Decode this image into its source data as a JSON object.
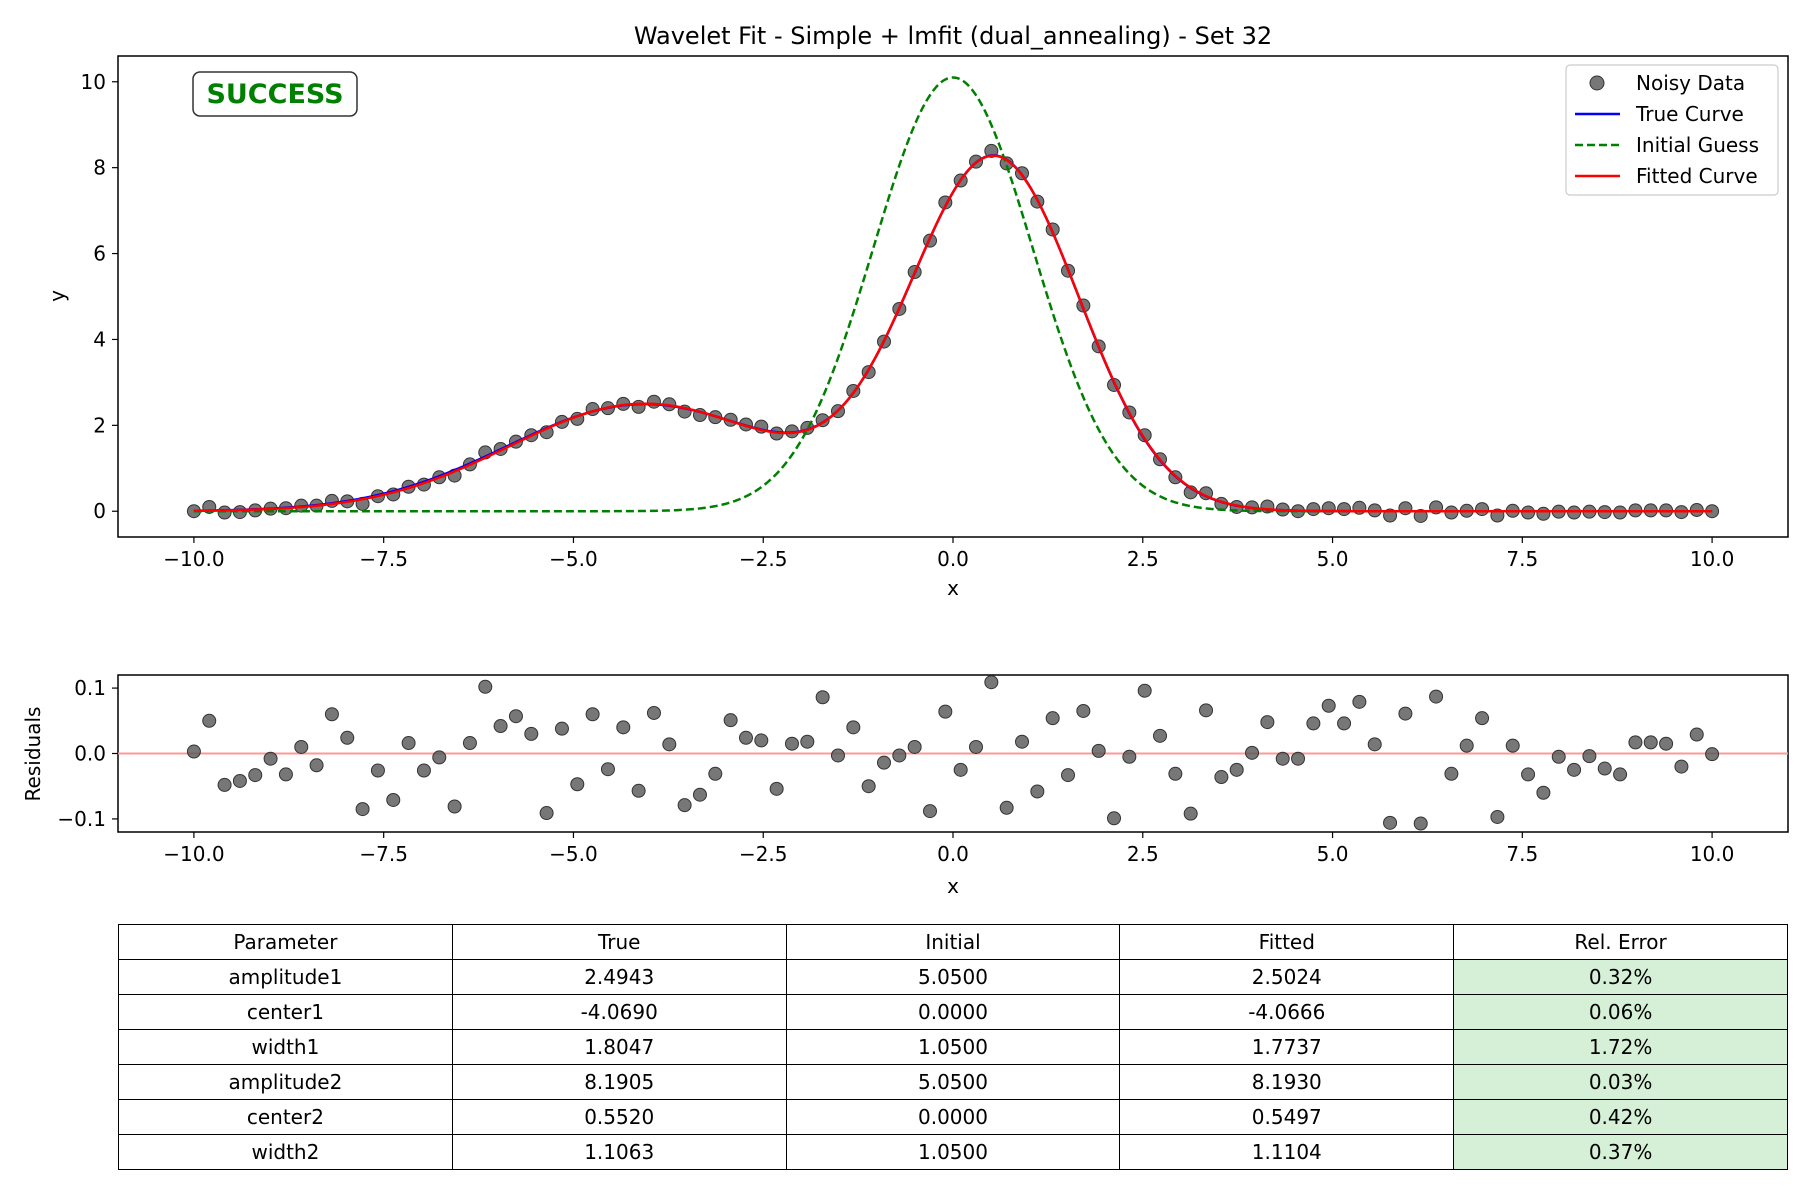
{
  "figure_title": "Wavelet Fit - Simple + lmfit (dual_annealing) - Set 32",
  "status_badge": "SUCCESS",
  "colors": {
    "noisy_data": "#555555",
    "true_curve": "#0000ff",
    "initial_guess": "#008000",
    "fitted_curve": "#ff0000",
    "zero_line": "#ff9999",
    "badge_text": "#008000",
    "rel_error_cell": "#d6f0d8"
  },
  "chart_data": [
    {
      "type": "line",
      "panel": "fit",
      "title": "Wavelet Fit - Simple + lmfit (dual_annealing) - Set 32",
      "xlabel": "x",
      "ylabel": "y",
      "xlim": [
        -11,
        11
      ],
      "ylim": [
        -0.6,
        10.6
      ],
      "xticks": [
        -10,
        -7.5,
        -5,
        -2.5,
        0,
        2.5,
        5,
        7.5,
        10
      ],
      "xtick_labels": [
        "−10.0",
        "−7.5",
        "−5.0",
        "−2.5",
        "0.0",
        "2.5",
        "5.0",
        "7.5",
        "10.0"
      ],
      "yticks": [
        0,
        2,
        4,
        6,
        8,
        10
      ],
      "ytick_labels": [
        "0",
        "2",
        "4",
        "6",
        "8",
        "10"
      ],
      "grid": false,
      "legend_position": "top-right",
      "legend": [
        "Noisy Data",
        "True Curve",
        "Initial Guess",
        "Fitted Curve"
      ],
      "series": [
        {
          "name": "Noisy Data",
          "style": "scatter",
          "y": [
            0.0,
            0.1,
            -0.03,
            -0.02,
            0.02,
            0.06,
            0.07,
            0.13,
            0.13,
            0.24,
            0.23,
            0.17,
            0.35,
            0.39,
            0.57,
            0.62,
            0.79,
            0.83,
            1.09,
            1.37,
            1.45,
            1.62,
            1.77,
            1.84,
            2.08,
            2.15,
            2.38,
            2.4,
            2.5,
            2.43,
            2.55,
            2.49,
            2.32,
            2.24,
            2.19,
            2.13,
            2.02,
            1.97,
            1.81,
            1.86,
            1.94,
            2.12,
            2.33,
            2.8,
            3.24,
            3.95,
            4.71,
            5.57,
            6.3,
            7.19,
            7.7,
            8.14,
            8.39,
            8.1,
            7.87,
            7.21,
            6.56,
            5.6,
            4.79,
            3.84,
            2.94,
            2.3,
            1.77,
            1.21,
            0.79,
            0.44,
            0.42,
            0.17,
            0.1,
            0.09,
            0.11,
            0.04,
            0.0,
            0.05,
            0.07,
            0.05,
            0.08,
            0.02,
            -0.1,
            0.07,
            -0.11,
            0.09,
            -0.03,
            0.01,
            0.05,
            -0.1,
            0.01,
            -0.03,
            -0.06,
            -0.01,
            -0.03,
            -0.01,
            -0.02,
            -0.03,
            0.02,
            0.02,
            0.02,
            -0.02,
            0.03,
            0.0
          ]
        },
        {
          "name": "True Curve",
          "style": "line",
          "model": {
            "amplitude1": 2.4943,
            "center1": -4.069,
            "width1": 1.8047,
            "amplitude2": 8.1905,
            "center2": 0.552,
            "width2": 1.1063
          }
        },
        {
          "name": "Initial Guess",
          "style": "dashed",
          "model": {
            "amplitude1": 5.05,
            "center1": 0.0,
            "width1": 1.05,
            "amplitude2": 5.05,
            "center2": 0.0,
            "width2": 1.05
          }
        },
        {
          "name": "Fitted Curve",
          "style": "line",
          "model": {
            "amplitude1": 2.5024,
            "center1": -4.0666,
            "width1": 1.7737,
            "amplitude2": 8.193,
            "center2": 0.5497,
            "width2": 1.1104
          }
        }
      ]
    },
    {
      "type": "scatter",
      "panel": "residuals",
      "xlabel": "x",
      "ylabel": "Residuals",
      "xlim": [
        -11,
        11
      ],
      "ylim": [
        -0.12,
        0.12
      ],
      "xticks": [
        -10,
        -7.5,
        -5,
        -2.5,
        0,
        2.5,
        5,
        7.5,
        10
      ],
      "xtick_labels": [
        "−10.0",
        "−7.5",
        "−5.0",
        "−2.5",
        "0.0",
        "2.5",
        "5.0",
        "7.5",
        "10.0"
      ],
      "yticks": [
        -0.1,
        0,
        0.1
      ],
      "ytick_labels": [
        "−0.1",
        "0.0",
        "0.1"
      ],
      "zero_line": 0,
      "y": [
        0.003,
        0.05,
        -0.048,
        -0.042,
        -0.033,
        -0.008,
        -0.032,
        0.01,
        -0.018,
        0.06,
        0.024,
        -0.085,
        -0.026,
        -0.071,
        0.016,
        -0.026,
        -0.006,
        -0.081,
        0.016,
        0.102,
        0.042,
        0.057,
        0.03,
        -0.091,
        0.038,
        -0.047,
        0.06,
        -0.024,
        0.04,
        -0.057,
        0.062,
        0.014,
        -0.079,
        -0.063,
        -0.031,
        0.051,
        0.024,
        0.02,
        -0.054,
        0.015,
        0.018,
        0.086,
        -0.003,
        0.04,
        -0.05,
        -0.014,
        -0.003,
        0.01,
        -0.088,
        0.064,
        -0.025,
        0.01,
        0.109,
        -0.083,
        0.018,
        -0.058,
        0.054,
        -0.033,
        0.065,
        0.004,
        -0.099,
        -0.005,
        0.096,
        0.027,
        -0.031,
        -0.092,
        0.066,
        -0.036,
        -0.025,
        0.001,
        0.048,
        -0.008,
        -0.008,
        0.046,
        0.073,
        0.046,
        0.079,
        0.014,
        -0.106,
        0.061,
        -0.107,
        0.087,
        -0.031,
        0.012,
        0.054,
        -0.097,
        0.012,
        -0.032,
        -0.06,
        -0.005,
        -0.025,
        -0.004,
        -0.023,
        -0.032,
        0.017,
        0.017,
        0.015,
        -0.02,
        0.029,
        -0.001
      ]
    },
    {
      "type": "table",
      "panel": "parameters",
      "columns": [
        "Parameter",
        "True",
        "Initial",
        "Fitted",
        "Rel. Error"
      ],
      "rows": [
        [
          "amplitude1",
          "2.4943",
          "5.0500",
          "2.5024",
          "0.32%"
        ],
        [
          "center1",
          "-4.0690",
          "0.0000",
          "-4.0666",
          "0.06%"
        ],
        [
          "width1",
          "1.8047",
          "1.0500",
          "1.7737",
          "1.72%"
        ],
        [
          "amplitude2",
          "8.1905",
          "5.0500",
          "8.1930",
          "0.03%"
        ],
        [
          "center2",
          "0.5520",
          "0.0000",
          "0.5497",
          "0.42%"
        ],
        [
          "width2",
          "1.1063",
          "1.0500",
          "1.1104",
          "0.37%"
        ]
      ]
    }
  ]
}
